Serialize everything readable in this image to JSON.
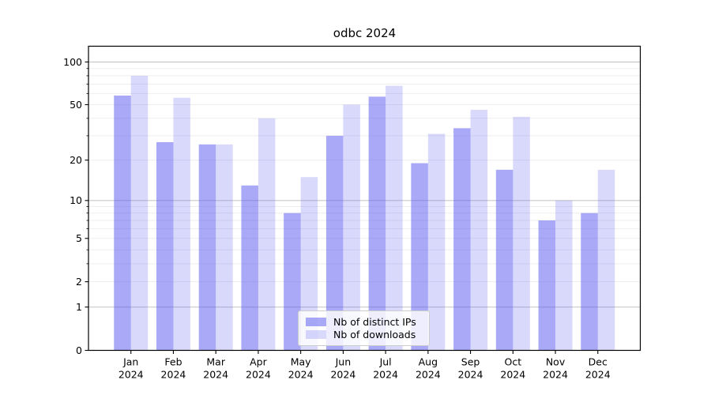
{
  "window": {
    "title": "odbc 2024"
  },
  "chart_data": {
    "type": "bar",
    "title": "odbc 2024",
    "xlabel": "",
    "ylabel": "",
    "yscale": "log1p",
    "ylim": [
      0,
      129
    ],
    "grid": "on",
    "legend_position": "lower center",
    "categories": [
      {
        "month": "Jan",
        "year": "2024"
      },
      {
        "month": "Feb",
        "year": "2024"
      },
      {
        "month": "Mar",
        "year": "2024"
      },
      {
        "month": "Apr",
        "year": "2024"
      },
      {
        "month": "May",
        "year": "2024"
      },
      {
        "month": "Jun",
        "year": "2024"
      },
      {
        "month": "Jul",
        "year": "2024"
      },
      {
        "month": "Aug",
        "year": "2024"
      },
      {
        "month": "Sep",
        "year": "2024"
      },
      {
        "month": "Oct",
        "year": "2024"
      },
      {
        "month": "Nov",
        "year": "2024"
      },
      {
        "month": "Dec",
        "year": "2024"
      }
    ],
    "series": [
      {
        "name": "Nb of distinct IPs",
        "color_hex": "#a9a9f4",
        "fill": "rgba(90,90,240,0.52)",
        "values": [
          58,
          27,
          26,
          13,
          8,
          30,
          57,
          19,
          34,
          17,
          7,
          8
        ]
      },
      {
        "name": "Nb of downloads",
        "color_hex": "#d9d9f8",
        "fill": "rgba(90,90,240,0.23)",
        "values": [
          80,
          56,
          26,
          40,
          15,
          50,
          68,
          31,
          46,
          41,
          10,
          17
        ]
      }
    ],
    "yticks": [
      0,
      1,
      2,
      5,
      10,
      20,
      50,
      100
    ],
    "yticks_minor": [
      3,
      4,
      6,
      7,
      8,
      9,
      30,
      40,
      60,
      70,
      80,
      90
    ],
    "gridlines_emphasis": [
      1,
      10,
      100
    ],
    "gridlines_light": [
      2,
      3,
      4,
      5,
      6,
      7,
      8,
      9,
      20,
      30,
      40,
      50,
      60,
      70,
      80,
      90
    ],
    "colors": {
      "background": "#ffffff",
      "spine": "#000000",
      "grid_major": "#c9c9c9",
      "grid_minor": "#ededed",
      "tick_label": "#000000"
    }
  }
}
